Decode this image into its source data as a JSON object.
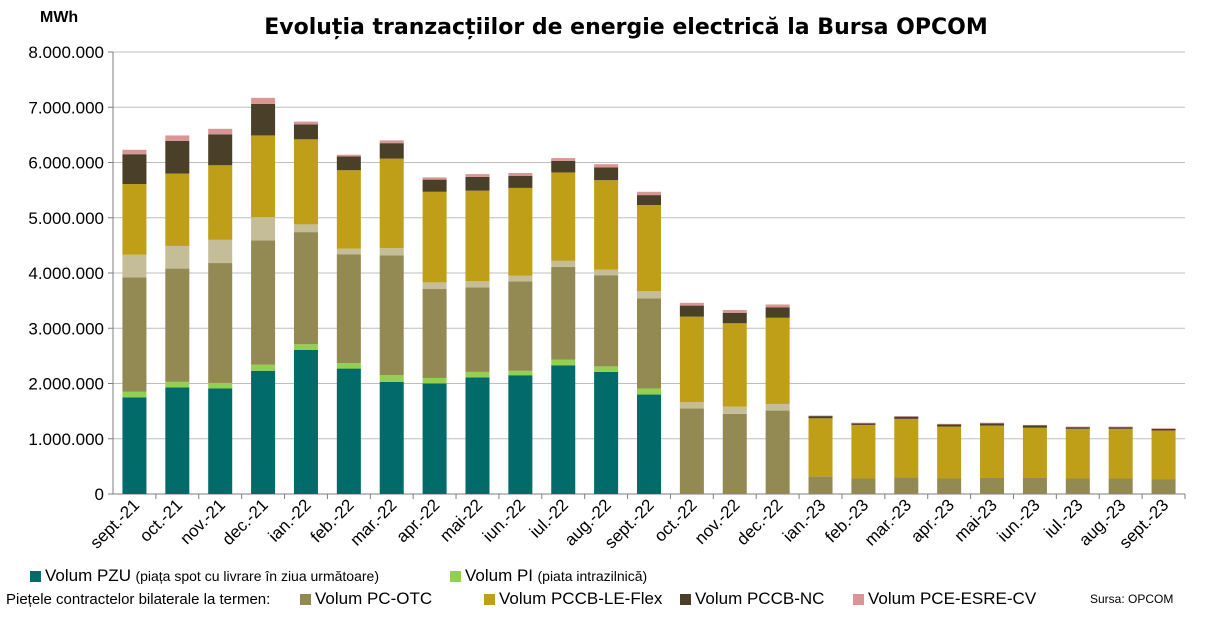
{
  "chart_data": {
    "type": "bar",
    "stacked": true,
    "title": "Evoluția tranzacțiilor de energie electrică la Bursa OPCOM",
    "ylabel": "MWh",
    "ylim": [
      0,
      8000000
    ],
    "yticks": [
      "0",
      "1.000.000",
      "2.000.000",
      "3.000.000",
      "4.000.000",
      "5.000.000",
      "6.000.000",
      "7.000.000",
      "8.000.000"
    ],
    "ytick_values": [
      0,
      1000000,
      2000000,
      3000000,
      4000000,
      5000000,
      6000000,
      7000000,
      8000000
    ],
    "categories": [
      "sept.-21",
      "oct.-21",
      "nov.-21",
      "dec.-21",
      "ian.-22",
      "feb.-22",
      "mar.-22",
      "apr.-22",
      "mai-22",
      "iun.-22",
      "iul.-22",
      "aug.-22",
      "sept.-22",
      "oct.-22",
      "nov.-22",
      "dec.-22",
      "ian.-23",
      "feb.-23",
      "mar.-23",
      "apr.-23",
      "mai-23",
      "iun.-23",
      "iul.-23",
      "aug.-23",
      "sept.-23"
    ],
    "series": [
      {
        "name": "Volum PZU",
        "color": "#006b68",
        "values": [
          1750000,
          1930000,
          1910000,
          2230000,
          2610000,
          2270000,
          2030000,
          2000000,
          2110000,
          2150000,
          2330000,
          2210000,
          1800000,
          0,
          0,
          0,
          0,
          0,
          0,
          0,
          0,
          0,
          0,
          0,
          0
        ]
      },
      {
        "name": "Volum PI",
        "color": "#92d050",
        "values": [
          100000,
          100000,
          100000,
          110000,
          100000,
          100000,
          120000,
          100000,
          100000,
          80000,
          100000,
          100000,
          110000,
          0,
          0,
          0,
          0,
          0,
          0,
          0,
          0,
          0,
          0,
          0,
          0
        ]
      },
      {
        "name": "Volum PC-OTC",
        "color": "#938953",
        "values": [
          2070000,
          2050000,
          2170000,
          2250000,
          2030000,
          1970000,
          2170000,
          1610000,
          1530000,
          1620000,
          1680000,
          1650000,
          1630000,
          1550000,
          1450000,
          1510000,
          320000,
          280000,
          300000,
          280000,
          290000,
          290000,
          280000,
          280000,
          270000
        ]
      },
      {
        "name": "",
        "color": "#c4bd97",
        "values": [
          410000,
          410000,
          420000,
          420000,
          140000,
          100000,
          130000,
          120000,
          110000,
          100000,
          110000,
          100000,
          130000,
          110000,
          130000,
          120000,
          0,
          0,
          0,
          0,
          0,
          0,
          0,
          0,
          0
        ]
      },
      {
        "name": "Volum PCCB-LE-Flex",
        "color": "#bf9f17",
        "values": [
          1280000,
          1310000,
          1350000,
          1480000,
          1540000,
          1420000,
          1620000,
          1640000,
          1640000,
          1590000,
          1600000,
          1620000,
          1560000,
          1550000,
          1510000,
          1560000,
          1050000,
          970000,
          1060000,
          940000,
          950000,
          910000,
          900000,
          900000,
          880000
        ]
      },
      {
        "name": "Volum PCCB-NC",
        "color": "#4a3f28",
        "values": [
          540000,
          590000,
          560000,
          570000,
          270000,
          250000,
          280000,
          220000,
          250000,
          220000,
          210000,
          230000,
          180000,
          200000,
          190000,
          190000,
          40000,
          30000,
          40000,
          40000,
          40000,
          40000,
          30000,
          30000,
          30000
        ]
      },
      {
        "name": "Volum PCE-ESRE-CV",
        "color": "#d99694",
        "values": [
          80000,
          100000,
          100000,
          110000,
          50000,
          30000,
          50000,
          40000,
          50000,
          50000,
          50000,
          60000,
          60000,
          50000,
          50000,
          50000,
          10000,
          10000,
          10000,
          10000,
          10000,
          10000,
          10000,
          10000,
          10000
        ]
      }
    ]
  },
  "legend": {
    "row1": [
      {
        "label": "Volum PZU",
        "note": "(piața spot cu livrare în ziua următoare)",
        "color": "#006b68"
      },
      {
        "label": "Volum PI",
        "note": "(piata intrazilnică)",
        "color": "#92d050"
      }
    ],
    "row2_prefix": "Piețele contractelor bilaterale la termen:",
    "row2": [
      {
        "label": "Volum PC-OTC",
        "color": "#938953"
      },
      {
        "label": "Volum PCCB-LE-Flex",
        "color": "#bf9f17"
      },
      {
        "label": "Volum PCCB-NC",
        "color": "#4a3f28"
      },
      {
        "label": "Volum PCE-ESRE-CV",
        "color": "#d99694"
      }
    ],
    "source": "Sursa: OPCOM"
  }
}
